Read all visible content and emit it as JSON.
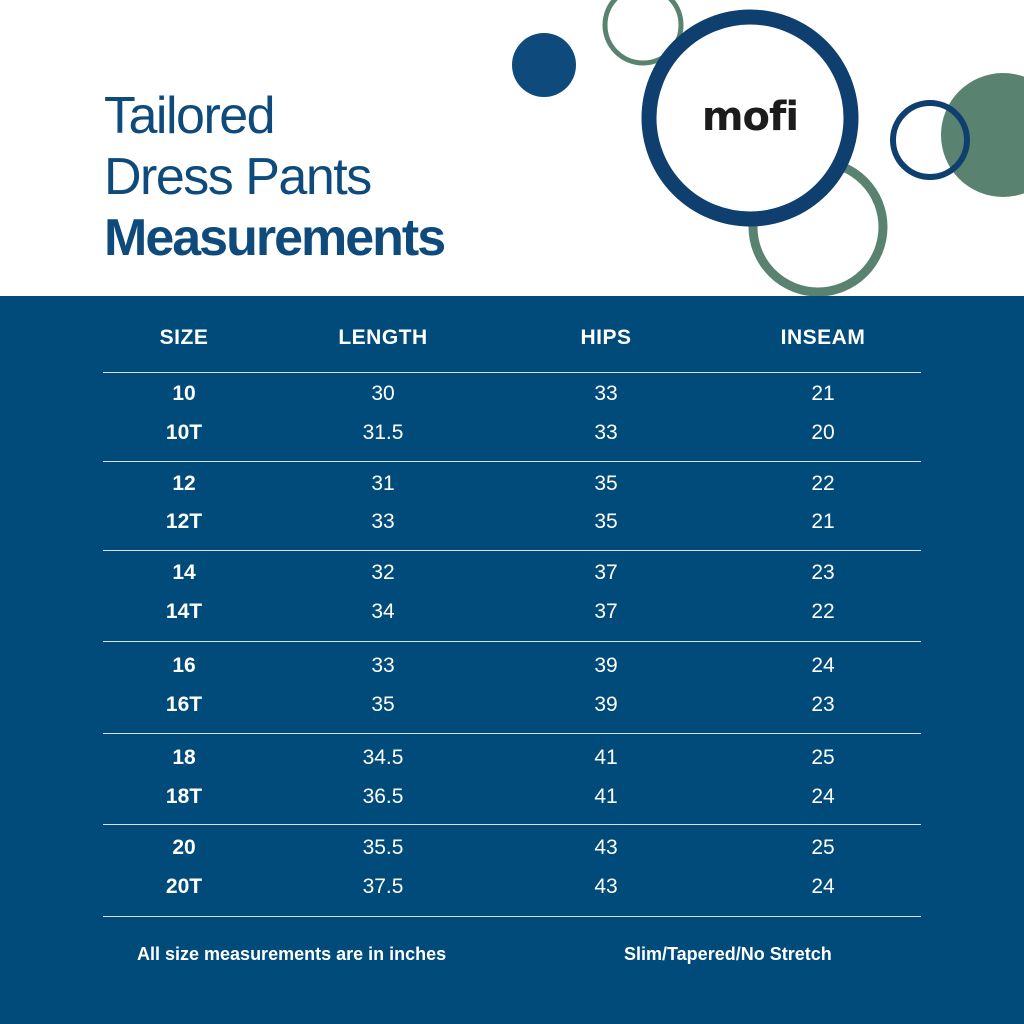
{
  "title": {
    "line1": "Tailored",
    "line2": "Dress Pants",
    "line3": "Measurements"
  },
  "brand": {
    "logo_text": "mofi"
  },
  "table": {
    "headers": [
      "SIZE",
      "LENGTH",
      "HIPS",
      "INSEAM"
    ],
    "groups": [
      [
        [
          "10",
          "30",
          "33",
          "21"
        ],
        [
          "10T",
          "31.5",
          "33",
          "20"
        ]
      ],
      [
        [
          "12",
          "31",
          "35",
          "22"
        ],
        [
          "12T",
          "33",
          "35",
          "21"
        ]
      ],
      [
        [
          "14",
          "32",
          "37",
          "23"
        ],
        [
          "14T",
          "34",
          "37",
          "22"
        ]
      ],
      [
        [
          "16",
          "33",
          "39",
          "24"
        ],
        [
          "16T",
          "35",
          "39",
          "23"
        ]
      ],
      [
        [
          "18",
          "34.5",
          "41",
          "25"
        ],
        [
          "18T",
          "36.5",
          "41",
          "24"
        ]
      ],
      [
        [
          "20",
          "35.5",
          "43",
          "25"
        ],
        [
          "20T",
          "37.5",
          "43",
          "24"
        ]
      ]
    ]
  },
  "footer": {
    "note_left": "All size measurements are in inches",
    "note_right": "Slim/Tapered/No Stretch"
  },
  "colors": {
    "navy": "#004b7a",
    "title_blue": "#0f4a7c",
    "ring_green": "#5a8270",
    "ring_navy": "#0f3f6e"
  }
}
